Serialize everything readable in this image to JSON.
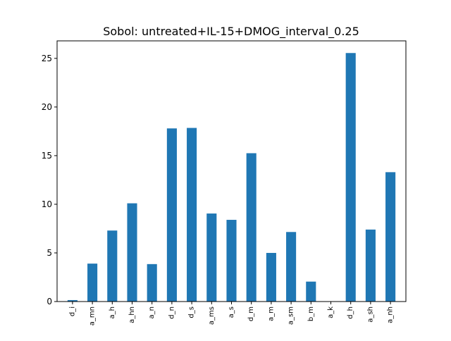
{
  "chart_data": {
    "type": "bar",
    "title": "Sobol: untreated+IL-15+DMOG_interval_0.25",
    "xlabel": "",
    "ylabel": "",
    "categories": [
      "d_i",
      "a_mn",
      "a_h",
      "a_hn",
      "a_n",
      "d_n",
      "d_s",
      "a_ms",
      "a_s",
      "d_m",
      "a_m",
      "a_sm",
      "b_m",
      "a_k",
      "d_h",
      "a_sh",
      "a_nh"
    ],
    "values": [
      0.15,
      3.9,
      7.3,
      10.1,
      3.85,
      17.8,
      17.85,
      9.05,
      8.4,
      15.25,
      5.0,
      7.15,
      2.05,
      0.0,
      25.55,
      7.4,
      13.3
    ],
    "ylim": [
      0,
      26.8
    ],
    "yticks": [
      0,
      5,
      10,
      15,
      20,
      25
    ],
    "bar_color": "#1f77b4",
    "grid": false,
    "legend": "none"
  }
}
